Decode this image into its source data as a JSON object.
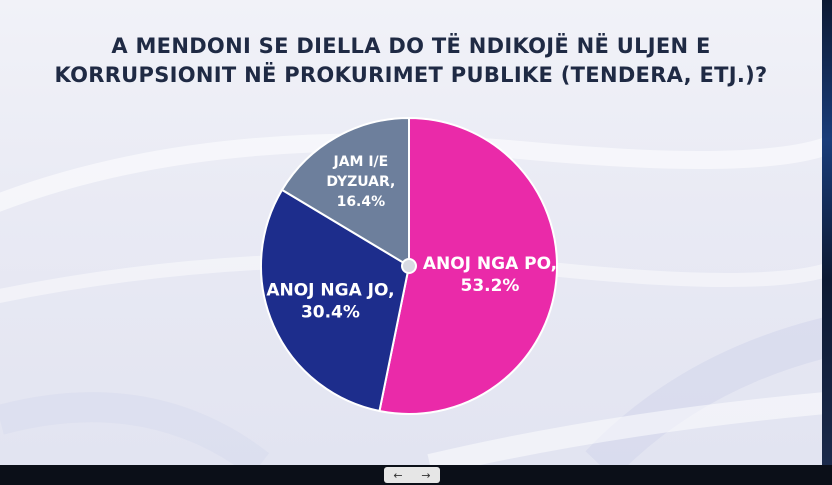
{
  "title_line1": "A MENDONI SE DIELLA DO TË NDIKOJË NË ULJEN E",
  "title_line2": "KORRUPSIONIT NË PROKURIMET PUBLIKE (TENDERA, ETJ.)?",
  "nav": {
    "prev_icon": "←",
    "next_icon": "→"
  },
  "chart_data": {
    "type": "pie",
    "title": "A MENDONI SE DIELLA DO TË NDIKOJË NË ULJEN E KORRUPSIONIT NË PROKURIMET PUBLIKE (TENDERA, ETJ.)?",
    "slices": [
      {
        "label_lines": [
          "ANOJ NGA PO,",
          "53.2%"
        ],
        "value": 53.2,
        "color": "#ea2aa9"
      },
      {
        "label_lines": [
          "ANOJ NGA JO,",
          "30.4%"
        ],
        "value": 30.4,
        "color": "#1d2d8c"
      },
      {
        "label_lines": [
          "JAM I/E",
          "DYZUAR,",
          "16.4%"
        ],
        "value": 16.4,
        "color": "#6d7f9c"
      }
    ]
  }
}
